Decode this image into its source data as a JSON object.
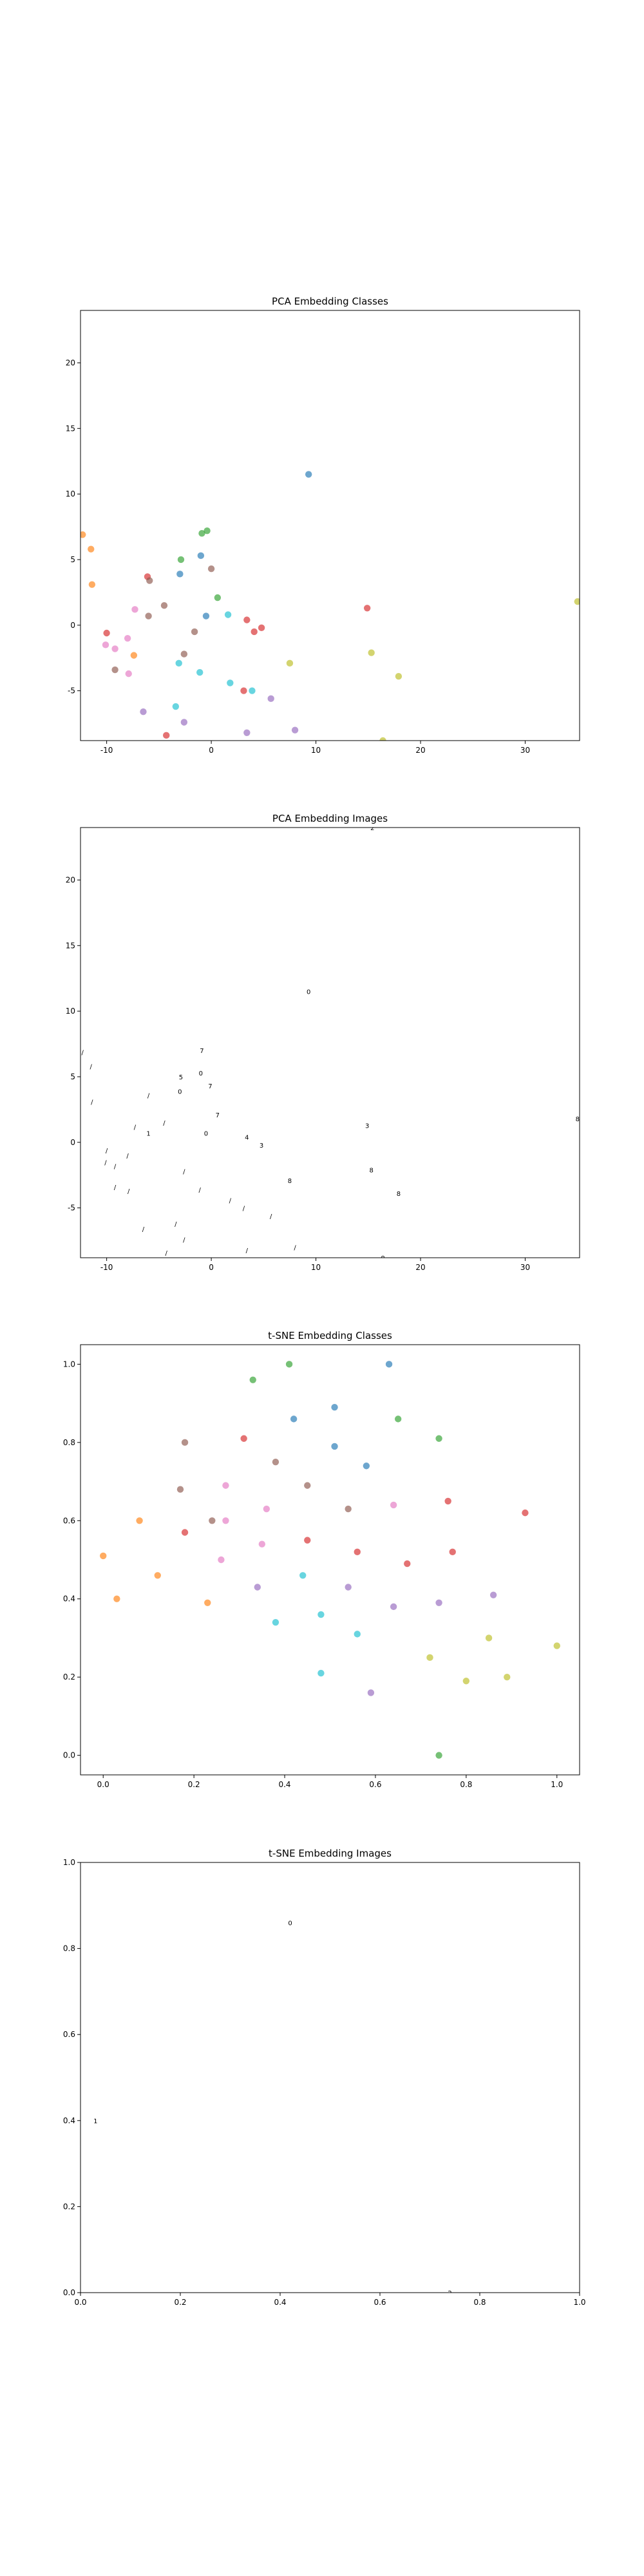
{
  "palette": {
    "0": "#1f77b4",
    "1": "#ff7f0e",
    "2": "#2ca02c",
    "3": "#d62728",
    "4": "#9467bd",
    "5": "#8c564b",
    "6": "#e377c2",
    "7": "#7f7f7f",
    "8": "#bcbd22",
    "9": "#17becf"
  },
  "chart_data": [
    {
      "type": "scatter",
      "title": "PCA Embedding Classes",
      "xlim": [
        -12.5,
        35.2
      ],
      "ylim": [
        -8.8,
        24.0
      ],
      "xticks": [
        -10,
        0,
        10,
        20,
        30
      ],
      "yticks": [
        -5,
        0,
        5,
        10,
        15,
        20
      ],
      "marker": "circle",
      "points": [
        {
          "x": 9.3,
          "y": 11.5,
          "c": "#1f77b4"
        },
        {
          "x": -0.9,
          "y": 7.0,
          "c": "#2ca02c"
        },
        {
          "x": -0.4,
          "y": 7.2,
          "c": "#2ca02c"
        },
        {
          "x": -2.9,
          "y": 5.0,
          "c": "#2ca02c"
        },
        {
          "x": -1.0,
          "y": 5.3,
          "c": "#1f77b4"
        },
        {
          "x": -3.0,
          "y": 3.9,
          "c": "#1f77b4"
        },
        {
          "x": -6.1,
          "y": 3.7,
          "c": "#d62728"
        },
        {
          "x": -5.9,
          "y": 3.4,
          "c": "#8c564b"
        },
        {
          "x": 0.0,
          "y": 4.3,
          "c": "#8c564b"
        },
        {
          "x": -12.3,
          "y": 6.9,
          "c": "#ff7f0e"
        },
        {
          "x": -11.5,
          "y": 5.8,
          "c": "#ff7f0e"
        },
        {
          "x": -11.4,
          "y": 3.1,
          "c": "#ff7f0e"
        },
        {
          "x": 0.6,
          "y": 2.1,
          "c": "#2ca02c"
        },
        {
          "x": -4.5,
          "y": 1.5,
          "c": "#8c564b"
        },
        {
          "x": -7.3,
          "y": 1.2,
          "c": "#e377c2"
        },
        {
          "x": -6.0,
          "y": 0.7,
          "c": "#8c564b"
        },
        {
          "x": -0.5,
          "y": 0.7,
          "c": "#1f77b4"
        },
        {
          "x": 1.6,
          "y": 0.8,
          "c": "#17becf"
        },
        {
          "x": 3.4,
          "y": 0.4,
          "c": "#d62728"
        },
        {
          "x": 4.8,
          "y": -0.2,
          "c": "#d62728"
        },
        {
          "x": 4.1,
          "y": -0.5,
          "c": "#d62728"
        },
        {
          "x": -1.6,
          "y": -0.5,
          "c": "#8c564b"
        },
        {
          "x": 14.9,
          "y": 1.3,
          "c": "#d62728"
        },
        {
          "x": 35.0,
          "y": 1.8,
          "c": "#bcbd22"
        },
        {
          "x": -10.0,
          "y": -0.6,
          "c": "#d62728"
        },
        {
          "x": -8.0,
          "y": -1.0,
          "c": "#e377c2"
        },
        {
          "x": -10.1,
          "y": -1.5,
          "c": "#e377c2"
        },
        {
          "x": -9.2,
          "y": -1.8,
          "c": "#e377c2"
        },
        {
          "x": -7.4,
          "y": -2.3,
          "c": "#ff7f0e"
        },
        {
          "x": -2.6,
          "y": -2.2,
          "c": "#8c564b"
        },
        {
          "x": -3.1,
          "y": -2.9,
          "c": "#17becf"
        },
        {
          "x": 7.5,
          "y": -2.9,
          "c": "#bcbd22"
        },
        {
          "x": 15.3,
          "y": -2.1,
          "c": "#bcbd22"
        },
        {
          "x": -9.2,
          "y": -3.4,
          "c": "#8c564b"
        },
        {
          "x": -7.9,
          "y": -3.7,
          "c": "#e377c2"
        },
        {
          "x": -1.1,
          "y": -3.6,
          "c": "#17becf"
        },
        {
          "x": 1.8,
          "y": -4.4,
          "c": "#17becf"
        },
        {
          "x": 17.9,
          "y": -3.9,
          "c": "#bcbd22"
        },
        {
          "x": 3.1,
          "y": -5.0,
          "c": "#d62728"
        },
        {
          "x": 3.9,
          "y": -5.0,
          "c": "#17becf"
        },
        {
          "x": 5.7,
          "y": -5.6,
          "c": "#9467bd"
        },
        {
          "x": -3.4,
          "y": -6.2,
          "c": "#17becf"
        },
        {
          "x": -6.5,
          "y": -6.6,
          "c": "#9467bd"
        },
        {
          "x": -2.6,
          "y": -7.4,
          "c": "#9467bd"
        },
        {
          "x": -4.3,
          "y": -8.4,
          "c": "#d62728"
        },
        {
          "x": 3.4,
          "y": -8.2,
          "c": "#9467bd"
        },
        {
          "x": 8.0,
          "y": -8.0,
          "c": "#9467bd"
        },
        {
          "x": 16.4,
          "y": -8.8,
          "c": "#bcbd22"
        }
      ]
    },
    {
      "type": "scatter",
      "title": "PCA Embedding Images",
      "xlim": [
        -12.5,
        35.2
      ],
      "ylim": [
        -8.8,
        24.0
      ],
      "xticks": [
        -10,
        0,
        10,
        20,
        30
      ],
      "yticks": [
        -5,
        0,
        5,
        10,
        15,
        20
      ],
      "marker": "digit-glyph",
      "points": [
        {
          "x": 15.4,
          "y": 24.0,
          "g": "2"
        },
        {
          "x": 9.3,
          "y": 11.5,
          "g": "0"
        },
        {
          "x": -0.9,
          "y": 7.0,
          "g": "7"
        },
        {
          "x": -12.3,
          "y": 6.9,
          "g": "/"
        },
        {
          "x": -11.5,
          "y": 5.8,
          "g": "/"
        },
        {
          "x": -1.0,
          "y": 5.3,
          "g": "0"
        },
        {
          "x": -2.9,
          "y": 5.0,
          "g": "5"
        },
        {
          "x": -0.1,
          "y": 4.3,
          "g": "7"
        },
        {
          "x": -3.0,
          "y": 3.9,
          "g": "0"
        },
        {
          "x": -6.0,
          "y": 3.6,
          "g": "/"
        },
        {
          "x": -11.4,
          "y": 3.1,
          "g": "/"
        },
        {
          "x": 0.6,
          "y": 2.1,
          "g": "7"
        },
        {
          "x": -4.5,
          "y": 1.5,
          "g": "/"
        },
        {
          "x": 14.9,
          "y": 1.3,
          "g": "3"
        },
        {
          "x": 35.0,
          "y": 1.8,
          "g": "8"
        },
        {
          "x": -7.3,
          "y": 1.2,
          "g": "/"
        },
        {
          "x": -6.0,
          "y": 0.7,
          "g": "1"
        },
        {
          "x": -0.5,
          "y": 0.7,
          "g": "0"
        },
        {
          "x": 3.4,
          "y": 0.4,
          "g": "4"
        },
        {
          "x": 4.8,
          "y": -0.2,
          "g": "3"
        },
        {
          "x": -10.0,
          "y": -0.6,
          "g": "/"
        },
        {
          "x": -8.0,
          "y": -1.0,
          "g": "/"
        },
        {
          "x": -10.1,
          "y": -1.5,
          "g": "/"
        },
        {
          "x": -9.2,
          "y": -1.8,
          "g": "/"
        },
        {
          "x": -2.6,
          "y": -2.2,
          "g": "/"
        },
        {
          "x": 15.3,
          "y": -2.1,
          "g": "8"
        },
        {
          "x": 7.5,
          "y": -2.9,
          "g": "8"
        },
        {
          "x": -9.2,
          "y": -3.4,
          "g": "/"
        },
        {
          "x": -7.9,
          "y": -3.7,
          "g": "/"
        },
        {
          "x": -1.1,
          "y": -3.6,
          "g": "/"
        },
        {
          "x": 17.9,
          "y": -3.9,
          "g": "8"
        },
        {
          "x": 1.8,
          "y": -4.4,
          "g": "/"
        },
        {
          "x": 3.1,
          "y": -5.0,
          "g": "/"
        },
        {
          "x": 5.7,
          "y": -5.6,
          "g": "/"
        },
        {
          "x": -3.4,
          "y": -6.2,
          "g": "/"
        },
        {
          "x": -6.5,
          "y": -6.6,
          "g": "/"
        },
        {
          "x": -2.6,
          "y": -7.4,
          "g": "/"
        },
        {
          "x": -4.3,
          "y": -8.4,
          "g": "/"
        },
        {
          "x": 3.4,
          "y": -8.2,
          "g": "/"
        },
        {
          "x": 8.0,
          "y": -8.0,
          "g": "/"
        },
        {
          "x": 16.4,
          "y": -8.8,
          "g": "8"
        }
      ]
    },
    {
      "type": "scatter",
      "title": "t-SNE Embedding Classes",
      "xlim": [
        -0.05,
        1.05
      ],
      "ylim": [
        -0.05,
        1.05
      ],
      "xticks": [
        0.0,
        0.2,
        0.4,
        0.6,
        0.8,
        1.0
      ],
      "yticks": [
        0.0,
        0.2,
        0.4,
        0.6,
        0.8,
        1.0
      ],
      "marker": "circle",
      "points": [
        {
          "x": 0.41,
          "y": 1.0,
          "c": "#2ca02c"
        },
        {
          "x": 0.63,
          "y": 1.0,
          "c": "#1f77b4"
        },
        {
          "x": 0.33,
          "y": 0.96,
          "c": "#2ca02c"
        },
        {
          "x": 0.51,
          "y": 0.89,
          "c": "#1f77b4"
        },
        {
          "x": 0.42,
          "y": 0.86,
          "c": "#1f77b4"
        },
        {
          "x": 0.65,
          "y": 0.86,
          "c": "#2ca02c"
        },
        {
          "x": 0.74,
          "y": 0.81,
          "c": "#2ca02c"
        },
        {
          "x": 0.31,
          "y": 0.81,
          "c": "#d62728"
        },
        {
          "x": 0.18,
          "y": 0.8,
          "c": "#8c564b"
        },
        {
          "x": 0.51,
          "y": 0.79,
          "c": "#1f77b4"
        },
        {
          "x": 0.38,
          "y": 0.75,
          "c": "#8c564b"
        },
        {
          "x": 0.58,
          "y": 0.74,
          "c": "#1f77b4"
        },
        {
          "x": 0.27,
          "y": 0.69,
          "c": "#e377c2"
        },
        {
          "x": 0.45,
          "y": 0.69,
          "c": "#8c564b"
        },
        {
          "x": 0.17,
          "y": 0.68,
          "c": "#8c564b"
        },
        {
          "x": 0.76,
          "y": 0.65,
          "c": "#d62728"
        },
        {
          "x": 0.64,
          "y": 0.64,
          "c": "#e377c2"
        },
        {
          "x": 0.54,
          "y": 0.63,
          "c": "#8c564b"
        },
        {
          "x": 0.36,
          "y": 0.63,
          "c": "#e377c2"
        },
        {
          "x": 0.93,
          "y": 0.62,
          "c": "#d62728"
        },
        {
          "x": 0.27,
          "y": 0.6,
          "c": "#e377c2"
        },
        {
          "x": 0.08,
          "y": 0.6,
          "c": "#ff7f0e"
        },
        {
          "x": 0.24,
          "y": 0.6,
          "c": "#8c564b"
        },
        {
          "x": 0.18,
          "y": 0.57,
          "c": "#d62728"
        },
        {
          "x": 0.45,
          "y": 0.55,
          "c": "#d62728"
        },
        {
          "x": 0.35,
          "y": 0.54,
          "c": "#e377c2"
        },
        {
          "x": 0.56,
          "y": 0.52,
          "c": "#d62728"
        },
        {
          "x": 0.77,
          "y": 0.52,
          "c": "#d62728"
        },
        {
          "x": 0.0,
          "y": 0.51,
          "c": "#ff7f0e"
        },
        {
          "x": 0.26,
          "y": 0.5,
          "c": "#e377c2"
        },
        {
          "x": 0.67,
          "y": 0.49,
          "c": "#d62728"
        },
        {
          "x": 0.12,
          "y": 0.46,
          "c": "#ff7f0e"
        },
        {
          "x": 0.44,
          "y": 0.46,
          "c": "#17becf"
        },
        {
          "x": 0.34,
          "y": 0.43,
          "c": "#9467bd"
        },
        {
          "x": 0.54,
          "y": 0.43,
          "c": "#9467bd"
        },
        {
          "x": 0.86,
          "y": 0.41,
          "c": "#9467bd"
        },
        {
          "x": 0.03,
          "y": 0.4,
          "c": "#ff7f0e"
        },
        {
          "x": 0.23,
          "y": 0.39,
          "c": "#ff7f0e"
        },
        {
          "x": 0.64,
          "y": 0.38,
          "c": "#9467bd"
        },
        {
          "x": 0.74,
          "y": 0.39,
          "c": "#9467bd"
        },
        {
          "x": 0.48,
          "y": 0.36,
          "c": "#17becf"
        },
        {
          "x": 0.38,
          "y": 0.34,
          "c": "#17becf"
        },
        {
          "x": 0.56,
          "y": 0.31,
          "c": "#17becf"
        },
        {
          "x": 0.85,
          "y": 0.3,
          "c": "#bcbd22"
        },
        {
          "x": 1.0,
          "y": 0.28,
          "c": "#bcbd22"
        },
        {
          "x": 0.72,
          "y": 0.25,
          "c": "#bcbd22"
        },
        {
          "x": 0.48,
          "y": 0.21,
          "c": "#17becf"
        },
        {
          "x": 0.89,
          "y": 0.2,
          "c": "#bcbd22"
        },
        {
          "x": 0.8,
          "y": 0.19,
          "c": "#bcbd22"
        },
        {
          "x": 0.59,
          "y": 0.16,
          "c": "#9467bd"
        },
        {
          "x": 0.74,
          "y": 0.0,
          "c": "#2ca02c"
        }
      ]
    },
    {
      "type": "scatter",
      "title": "t-SNE Embedding Images",
      "xlim": [
        0.0,
        1.0
      ],
      "ylim": [
        0.0,
        1.0
      ],
      "xticks": [
        0.0,
        0.2,
        0.4,
        0.6,
        0.8,
        1.0
      ],
      "yticks": [
        0.0,
        0.2,
        0.4,
        0.6,
        0.8,
        1.0
      ],
      "marker": "digit-glyph",
      "points": [
        {
          "x": 0.42,
          "y": 0.86,
          "g": "0"
        },
        {
          "x": 0.03,
          "y": 0.4,
          "g": "1"
        },
        {
          "x": 0.74,
          "y": 0.0,
          "g": "2"
        }
      ]
    }
  ]
}
